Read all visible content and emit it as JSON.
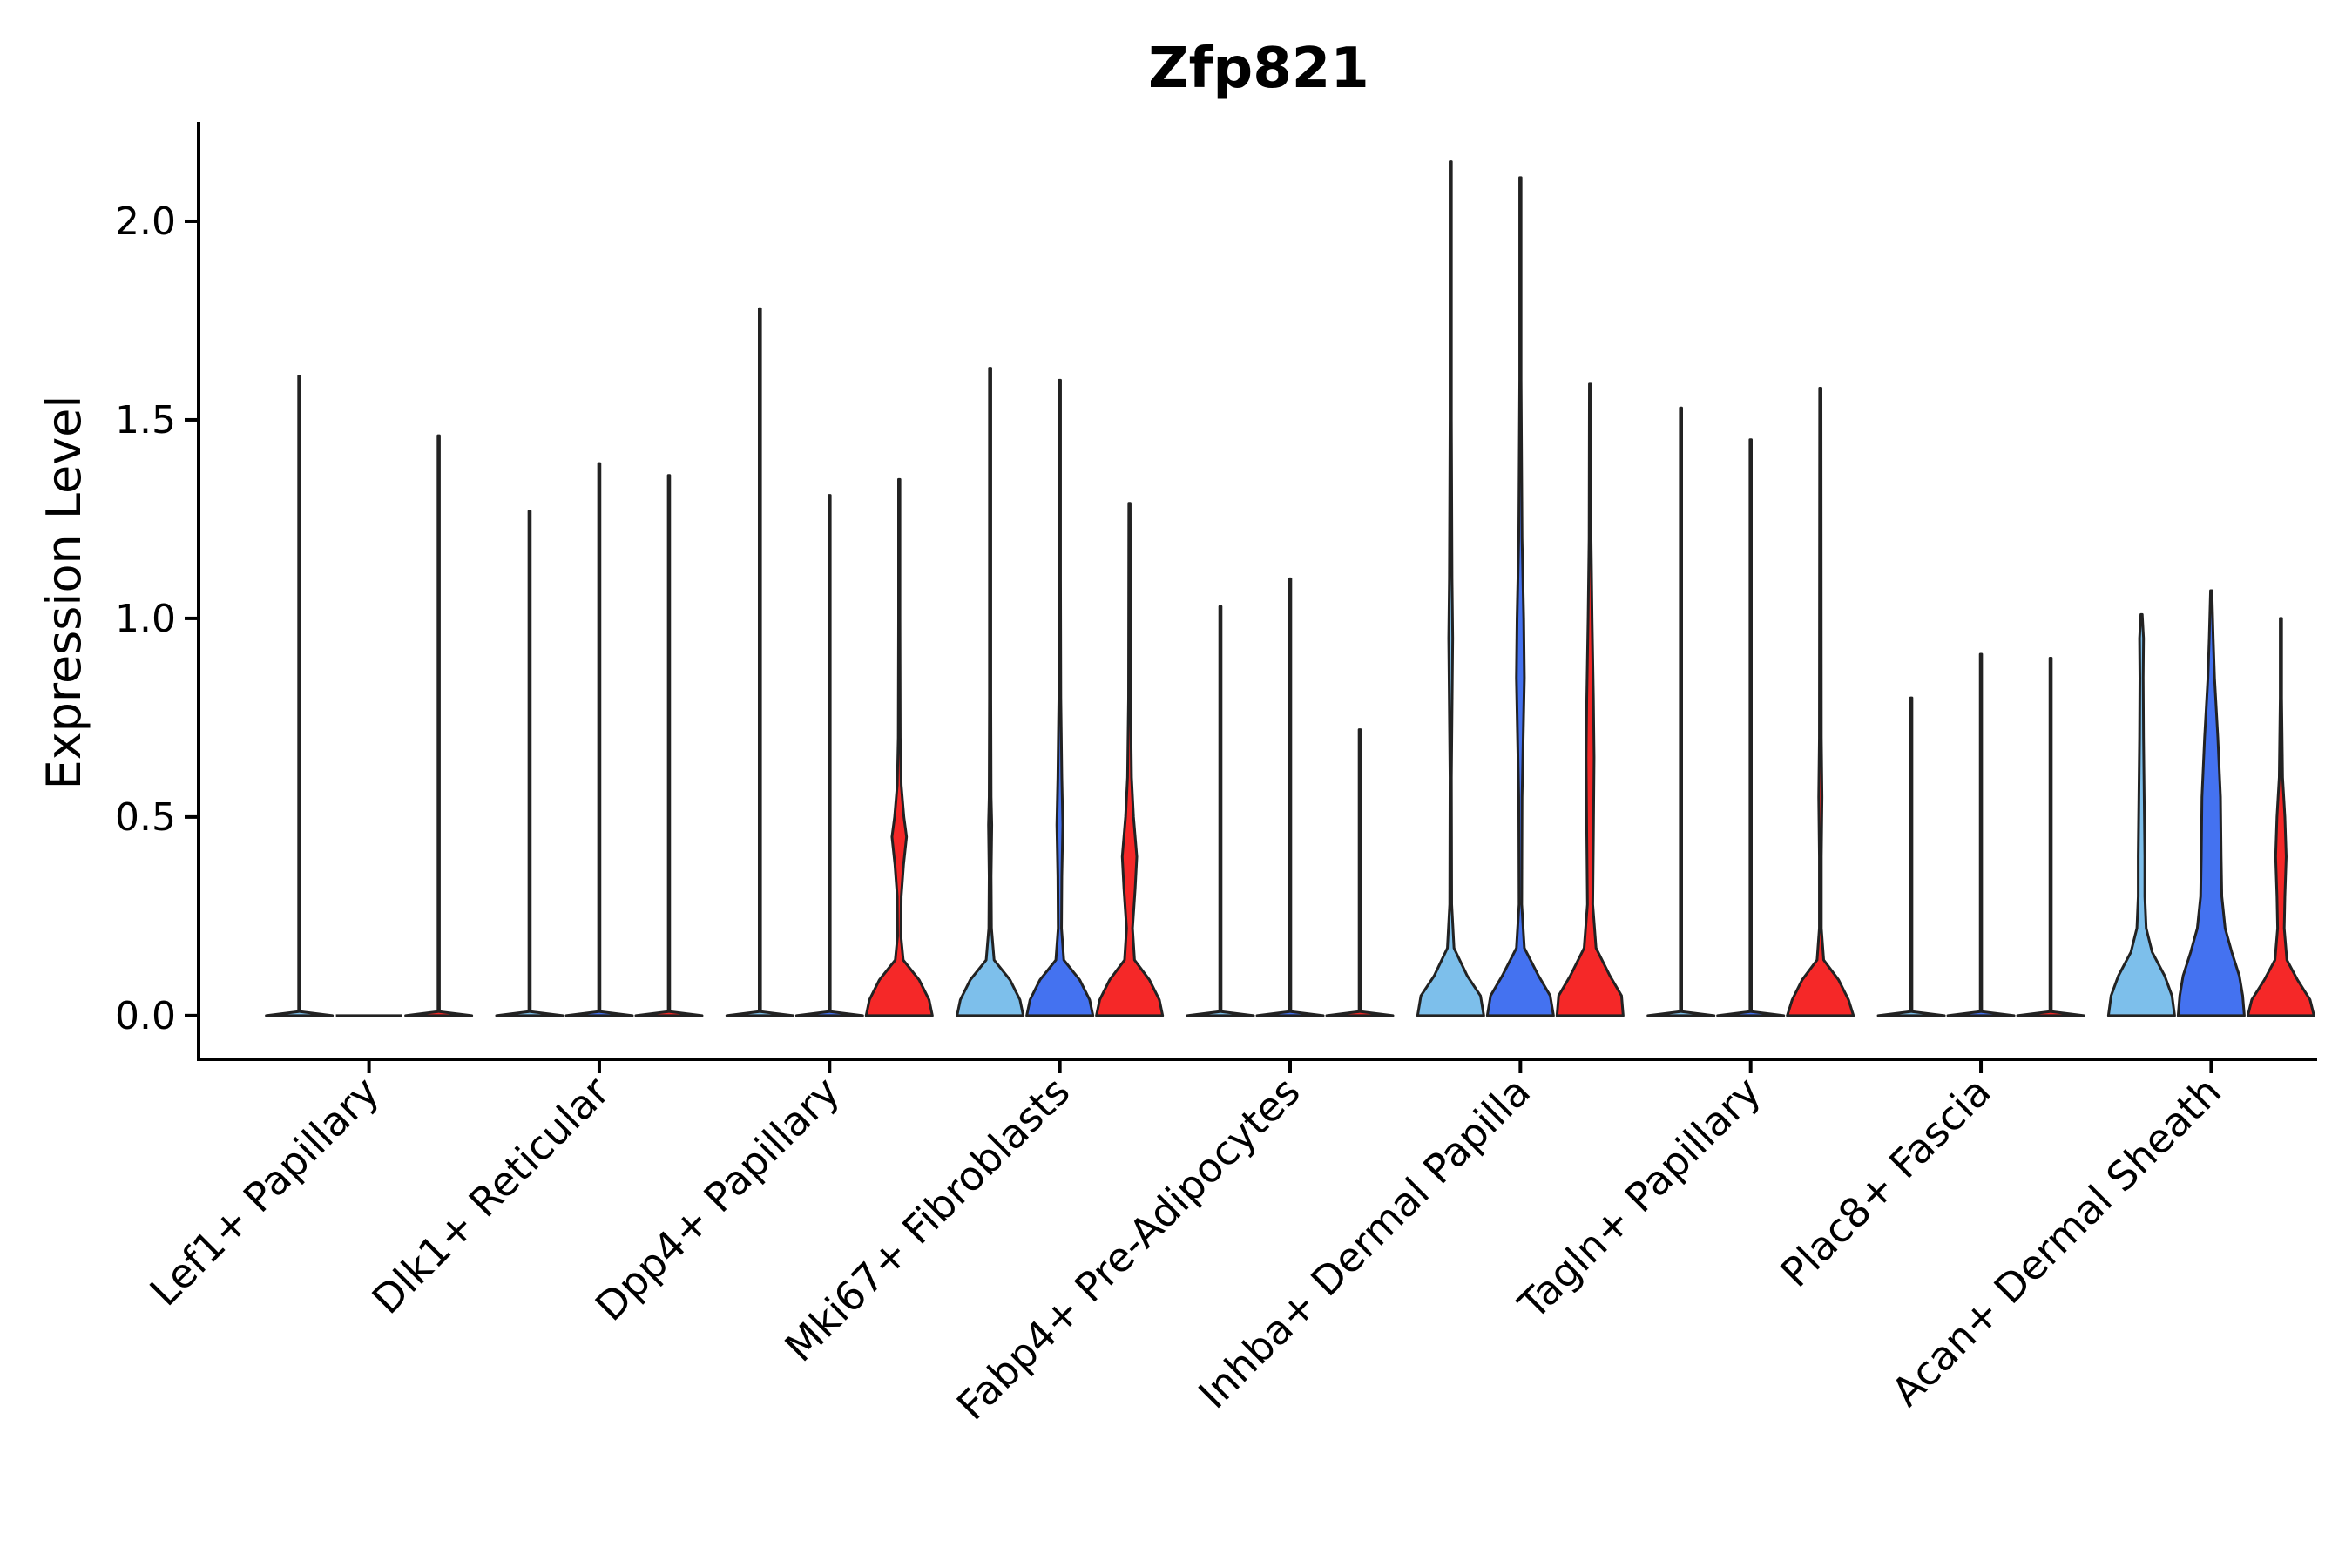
{
  "chart_data": {
    "type": "violin",
    "title": "Zfp821",
    "xlabel": "",
    "ylabel": "Expression Level",
    "ylim": [
      -0.11,
      2.25
    ],
    "yticks": [
      0.0,
      0.5,
      1.0,
      1.5,
      2.0
    ],
    "ytick_labels": [
      "0.0",
      "0.5",
      "1.0",
      "1.5",
      "2.0"
    ],
    "grid": false,
    "legend": "none",
    "series_colors": [
      "#7dbfeb",
      "#4472f0",
      "#f52828"
    ],
    "categories": [
      "Lef1+ Papillary",
      "Dlk1+ Reticular",
      "Dpp4+ Papillary",
      "Mki67+ Fibroblasts",
      "Fabp4+ Pre-Adipocytes",
      "Inhba+ Dermal Papilla",
      "Tagln+ Papillary",
      "Plac8+ Fascia",
      "Acan+ Dermal Sheath"
    ],
    "violins": [
      [
        {
          "max": 1.61,
          "shape": [
            [
              0,
              1
            ],
            [
              0.01,
              0
            ],
            [
              1.61,
              0
            ]
          ]
        },
        null,
        {
          "max": 1.46,
          "shape": [
            [
              0,
              1
            ],
            [
              0.01,
              0
            ],
            [
              1.46,
              0
            ]
          ]
        }
      ],
      [
        {
          "max": 1.27,
          "shape": [
            [
              0,
              1
            ],
            [
              0.01,
              0
            ],
            [
              1.27,
              0
            ]
          ]
        },
        {
          "max": 1.39,
          "shape": [
            [
              0,
              1
            ],
            [
              0.01,
              0
            ],
            [
              1.39,
              0
            ]
          ]
        },
        {
          "max": 1.36,
          "shape": [
            [
              0,
              1
            ],
            [
              0.01,
              0
            ],
            [
              1.36,
              0
            ]
          ]
        }
      ],
      [
        {
          "max": 1.78,
          "shape": [
            [
              0,
              1
            ],
            [
              0.01,
              0
            ],
            [
              1.78,
              0
            ]
          ]
        },
        {
          "max": 1.31,
          "shape": [
            [
              0,
              1
            ],
            [
              0.01,
              0
            ],
            [
              1.31,
              0
            ]
          ]
        },
        {
          "max": 1.35,
          "shape": [
            [
              0,
              1
            ],
            [
              0.04,
              0.9
            ],
            [
              0.09,
              0.6
            ],
            [
              0.14,
              0.12
            ],
            [
              0.2,
              0.05
            ],
            [
              0.3,
              0.06
            ],
            [
              0.38,
              0.13
            ],
            [
              0.45,
              0.22
            ],
            [
              0.5,
              0.14
            ],
            [
              0.58,
              0.06
            ],
            [
              0.7,
              0.03
            ],
            [
              1.0,
              0.02
            ],
            [
              1.35,
              0
            ]
          ]
        }
      ],
      [
        {
          "max": 1.63,
          "shape": [
            [
              0,
              1
            ],
            [
              0.04,
              0.9
            ],
            [
              0.09,
              0.6
            ],
            [
              0.14,
              0.12
            ],
            [
              0.22,
              0.04
            ],
            [
              0.35,
              0.03
            ],
            [
              0.48,
              0.05
            ],
            [
              0.55,
              0.03
            ],
            [
              0.8,
              0.02
            ],
            [
              1.63,
              0
            ]
          ]
        },
        {
          "max": 1.6,
          "shape": [
            [
              0,
              1
            ],
            [
              0.04,
              0.9
            ],
            [
              0.09,
              0.6
            ],
            [
              0.14,
              0.12
            ],
            [
              0.22,
              0.05
            ],
            [
              0.35,
              0.06
            ],
            [
              0.48,
              0.09
            ],
            [
              0.6,
              0.06
            ],
            [
              0.8,
              0.03
            ],
            [
              1.1,
              0.02
            ],
            [
              1.6,
              0
            ]
          ]
        },
        {
          "max": 1.29,
          "shape": [
            [
              0,
              1
            ],
            [
              0.04,
              0.9
            ],
            [
              0.09,
              0.6
            ],
            [
              0.14,
              0.15
            ],
            [
              0.22,
              0.09
            ],
            [
              0.32,
              0.17
            ],
            [
              0.4,
              0.22
            ],
            [
              0.5,
              0.12
            ],
            [
              0.6,
              0.06
            ],
            [
              0.8,
              0.03
            ],
            [
              1.29,
              0
            ]
          ]
        }
      ],
      [
        {
          "max": 1.03,
          "shape": [
            [
              0,
              1
            ],
            [
              0.01,
              0
            ],
            [
              1.03,
              0
            ]
          ]
        },
        {
          "max": 1.1,
          "shape": [
            [
              0,
              1
            ],
            [
              0.01,
              0
            ],
            [
              1.1,
              0
            ]
          ]
        },
        {
          "max": 0.72,
          "shape": [
            [
              0,
              1
            ],
            [
              0.01,
              0
            ],
            [
              0.72,
              0
            ]
          ]
        }
      ],
      [
        {
          "max": 2.15,
          "shape": [
            [
              0,
              1
            ],
            [
              0.05,
              0.9
            ],
            [
              0.1,
              0.5
            ],
            [
              0.17,
              0.1
            ],
            [
              0.28,
              0.03
            ],
            [
              0.6,
              0.02
            ],
            [
              0.95,
              0.06
            ],
            [
              1.1,
              0.04
            ],
            [
              1.5,
              0.02
            ],
            [
              2.15,
              0
            ]
          ]
        },
        {
          "max": 2.11,
          "shape": [
            [
              0,
              1
            ],
            [
              0.05,
              0.9
            ],
            [
              0.1,
              0.55
            ],
            [
              0.17,
              0.12
            ],
            [
              0.28,
              0.04
            ],
            [
              0.55,
              0.05
            ],
            [
              0.85,
              0.12
            ],
            [
              1.0,
              0.1
            ],
            [
              1.2,
              0.05
            ],
            [
              1.6,
              0.02
            ],
            [
              2.11,
              0
            ]
          ]
        },
        {
          "max": 1.59,
          "shape": [
            [
              0,
              1
            ],
            [
              0.05,
              0.95
            ],
            [
              0.1,
              0.6
            ],
            [
              0.17,
              0.18
            ],
            [
              0.28,
              0.08
            ],
            [
              0.45,
              0.1
            ],
            [
              0.65,
              0.12
            ],
            [
              0.8,
              0.1
            ],
            [
              1.0,
              0.06
            ],
            [
              1.2,
              0.03
            ],
            [
              1.59,
              0
            ]
          ]
        }
      ],
      [
        {
          "max": 1.53,
          "shape": [
            [
              0,
              1
            ],
            [
              0.01,
              0
            ],
            [
              1.53,
              0
            ]
          ]
        },
        {
          "max": 1.45,
          "shape": [
            [
              0,
              1
            ],
            [
              0.01,
              0
            ],
            [
              1.45,
              0
            ]
          ]
        },
        {
          "max": 1.58,
          "shape": [
            [
              0,
              1
            ],
            [
              0.04,
              0.85
            ],
            [
              0.09,
              0.55
            ],
            [
              0.14,
              0.1
            ],
            [
              0.22,
              0.03
            ],
            [
              0.4,
              0.03
            ],
            [
              0.55,
              0.05
            ],
            [
              0.7,
              0.03
            ],
            [
              1.58,
              0
            ]
          ]
        }
      ],
      [
        {
          "max": 0.8,
          "shape": [
            [
              0,
              1
            ],
            [
              0.01,
              0
            ],
            [
              0.8,
              0
            ]
          ]
        },
        {
          "max": 0.91,
          "shape": [
            [
              0,
              1
            ],
            [
              0.01,
              0
            ],
            [
              0.91,
              0
            ]
          ]
        },
        {
          "max": 0.9,
          "shape": [
            [
              0,
              1
            ],
            [
              0.01,
              0
            ],
            [
              0.9,
              0
            ]
          ]
        }
      ],
      [
        {
          "max": 1.01,
          "shape": [
            [
              0,
              1
            ],
            [
              0.05,
              0.92
            ],
            [
              0.1,
              0.7
            ],
            [
              0.16,
              0.32
            ],
            [
              0.22,
              0.14
            ],
            [
              0.3,
              0.1
            ],
            [
              0.4,
              0.1
            ],
            [
              0.55,
              0.08
            ],
            [
              0.7,
              0.06
            ],
            [
              0.85,
              0.05
            ],
            [
              0.95,
              0.06
            ],
            [
              1.01,
              0
            ]
          ]
        },
        {
          "max": 1.07,
          "shape": [
            [
              0,
              1
            ],
            [
              0.05,
              0.95
            ],
            [
              0.1,
              0.85
            ],
            [
              0.16,
              0.62
            ],
            [
              0.22,
              0.42
            ],
            [
              0.3,
              0.32
            ],
            [
              0.4,
              0.3
            ],
            [
              0.55,
              0.28
            ],
            [
              0.7,
              0.2
            ],
            [
              0.85,
              0.1
            ],
            [
              0.95,
              0.06
            ],
            [
              1.07,
              0
            ]
          ]
        },
        {
          "max": 1.0,
          "shape": [
            [
              0,
              1
            ],
            [
              0.04,
              0.88
            ],
            [
              0.09,
              0.5
            ],
            [
              0.14,
              0.18
            ],
            [
              0.22,
              0.1
            ],
            [
              0.3,
              0.12
            ],
            [
              0.4,
              0.16
            ],
            [
              0.5,
              0.12
            ],
            [
              0.6,
              0.05
            ],
            [
              0.8,
              0.02
            ],
            [
              1.0,
              0
            ]
          ]
        }
      ]
    ]
  }
}
